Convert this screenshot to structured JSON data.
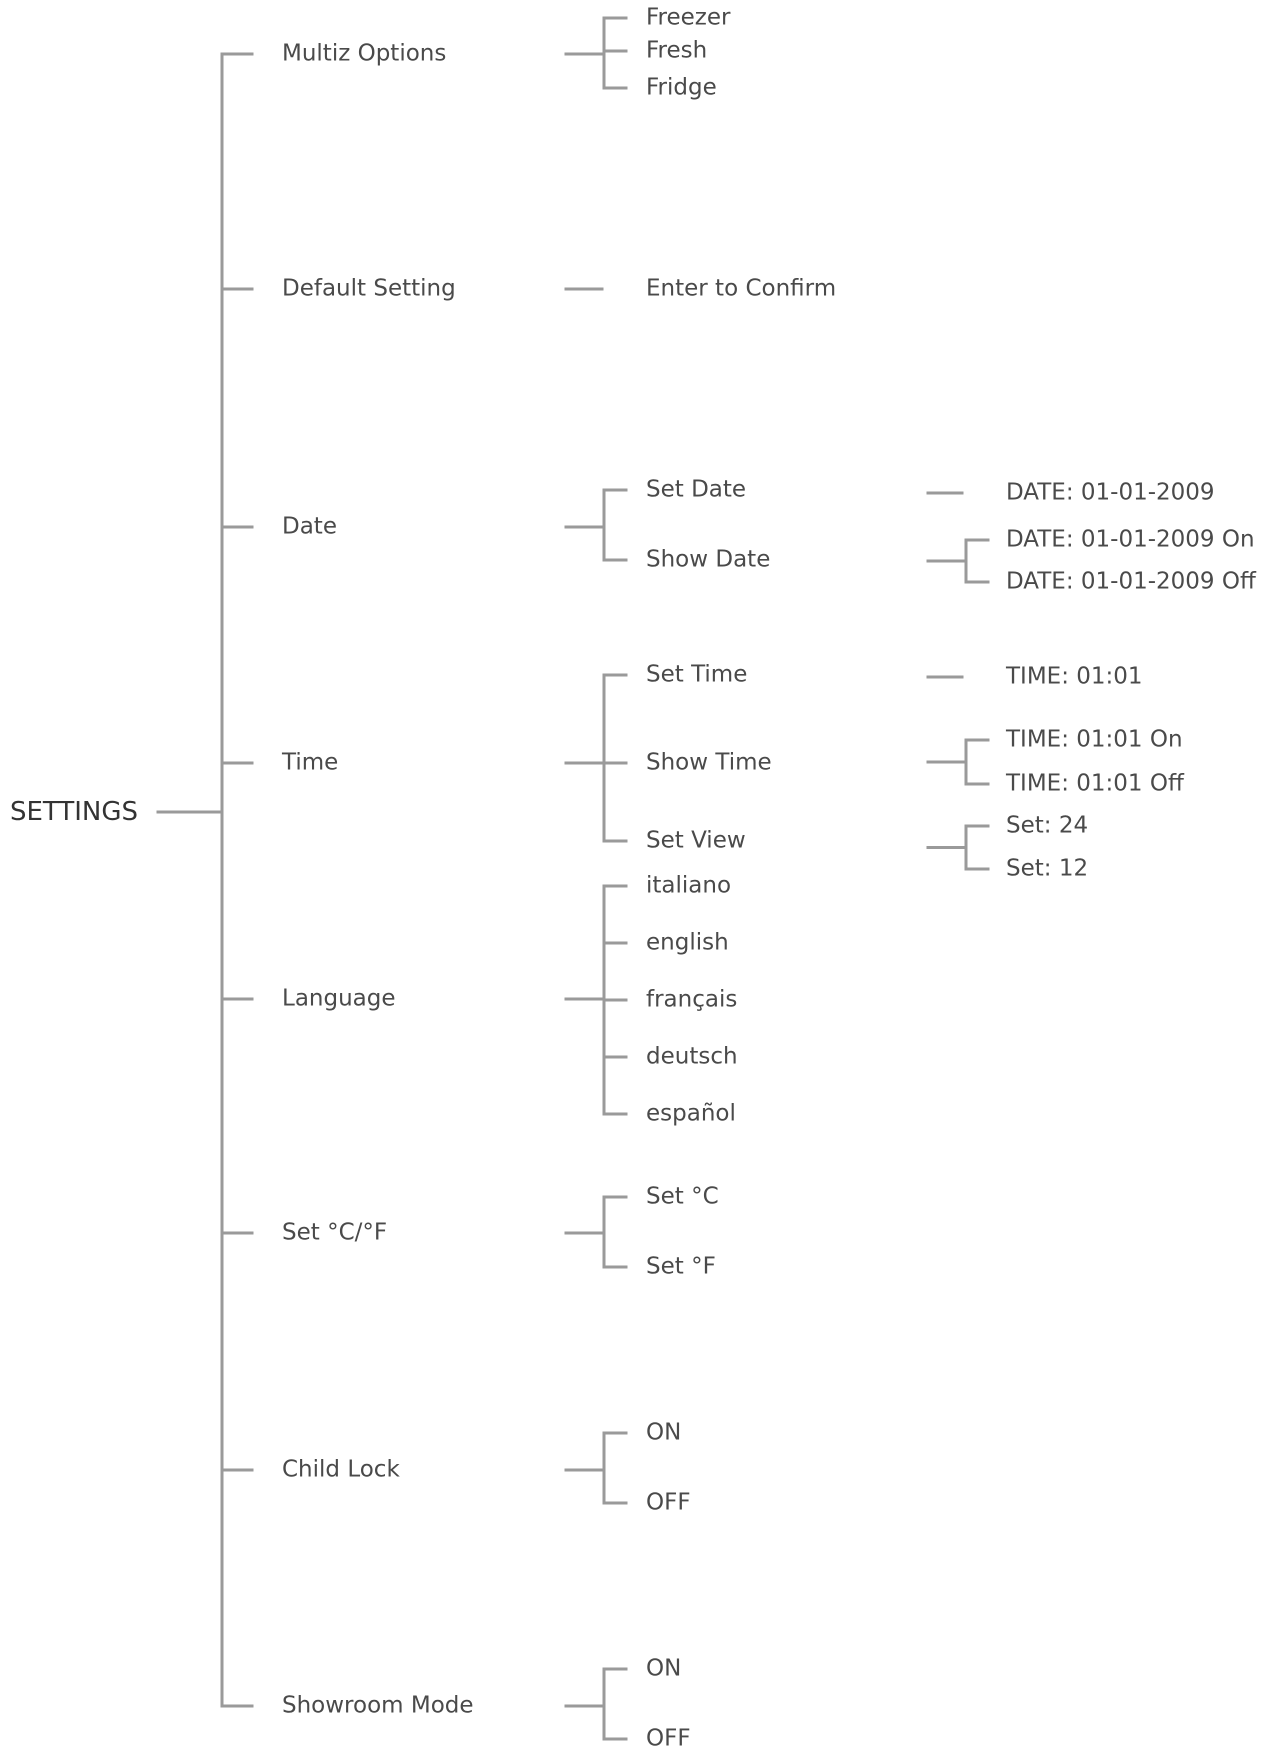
{
  "colors": {
    "line": "#9a9a9a",
    "text": "#4a4a4a"
  },
  "root": {
    "label": "SETTINGS"
  },
  "branches": [
    {
      "id": "multiz",
      "label": "Multiz Options",
      "children": [
        {
          "label": "Freezer"
        },
        {
          "label": "Fresh"
        },
        {
          "label": "Fridge"
        }
      ]
    },
    {
      "id": "default",
      "label": "Default Setting",
      "children": [
        {
          "label": "Enter to Confirm"
        }
      ]
    },
    {
      "id": "date",
      "label": "Date",
      "children": [
        {
          "label": "Set Date",
          "children": [
            {
              "label": "DATE: 01-01-2009"
            }
          ]
        },
        {
          "label": "Show Date",
          "children": [
            {
              "label": "DATE: 01-01-2009 On"
            },
            {
              "label": "DATE: 01-01-2009 Off"
            }
          ]
        }
      ]
    },
    {
      "id": "time",
      "label": "Time",
      "children": [
        {
          "label": "Set Time",
          "children": [
            {
              "label": "TIME: 01:01"
            }
          ]
        },
        {
          "label": "Show Time",
          "children": [
            {
              "label": "TIME: 01:01 On"
            },
            {
              "label": "TIME: 01:01 Off"
            }
          ]
        },
        {
          "label": "Set View",
          "children": [
            {
              "label": "Set: 24"
            },
            {
              "label": "Set: 12"
            }
          ]
        }
      ]
    },
    {
      "id": "language",
      "label": "Language",
      "children": [
        {
          "label": "italiano"
        },
        {
          "label": "english"
        },
        {
          "label": "français"
        },
        {
          "label": "deutsch"
        },
        {
          "label": "español"
        }
      ]
    },
    {
      "id": "units",
      "label": "Set °C/°F",
      "children": [
        {
          "label": "Set °C"
        },
        {
          "label": "Set °F"
        }
      ]
    },
    {
      "id": "childlock",
      "label": "Child Lock",
      "children": [
        {
          "label": "ON"
        },
        {
          "label": "OFF"
        }
      ]
    },
    {
      "id": "showroom",
      "label": "Showroom Mode",
      "children": [
        {
          "label": "ON"
        },
        {
          "label": "OFF"
        }
      ]
    }
  ]
}
